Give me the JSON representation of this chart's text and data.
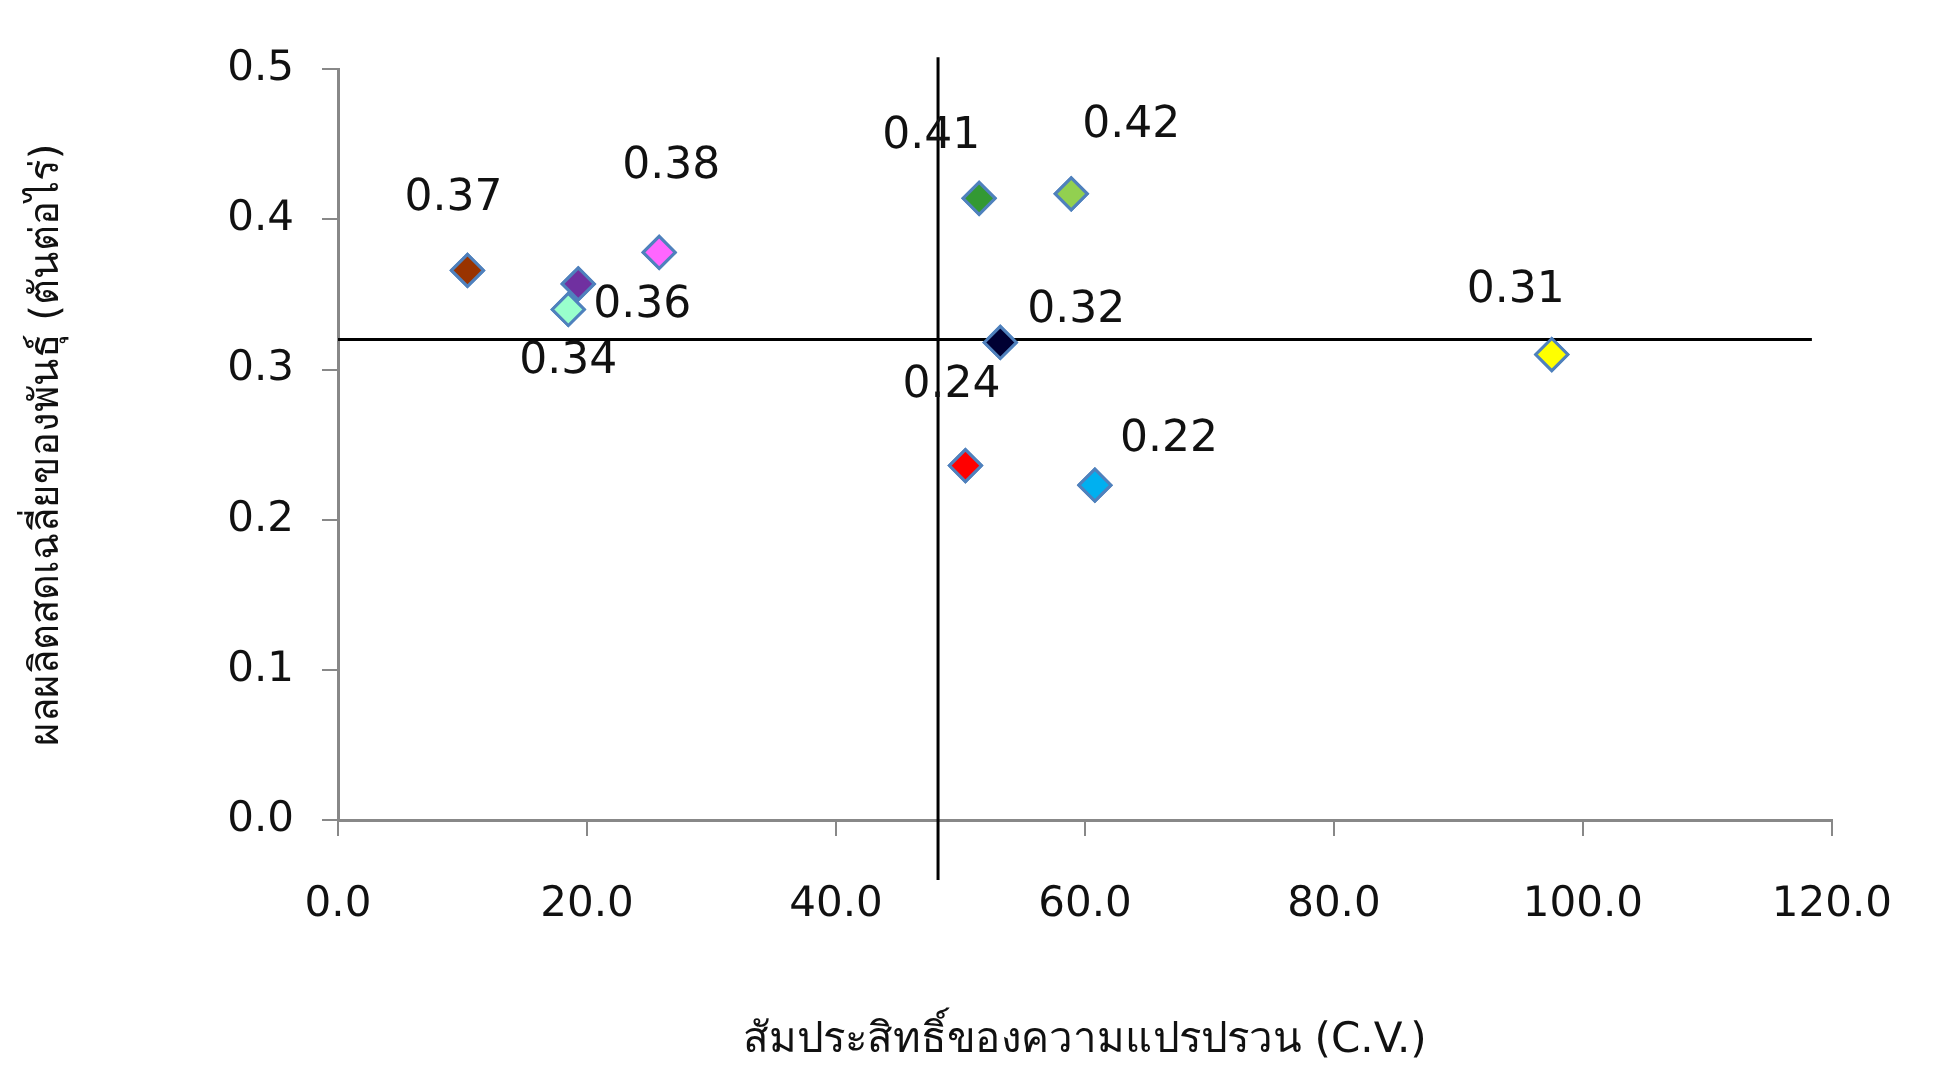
{
  "chart_data": {
    "type": "scatter",
    "xlabel": "สัมประสิทธิ์ของความแปรปรวน (C.V.)",
    "ylabel": "ผลผลิตสดเฉลี่ยของพันธุ์ (ตันต่อไร่)",
    "x": [
      10.4,
      18.5,
      19.3,
      25.8,
      50.4,
      51.5,
      53.2,
      58.9,
      60.8,
      97.5
    ],
    "values": [
      0.366,
      0.34,
      0.357,
      0.378,
      0.236,
      0.414,
      0.318,
      0.417,
      0.223,
      0.31
    ],
    "value_labels": [
      "0.37",
      "0.34",
      "0.36",
      "0.38",
      "0.24",
      "0.41",
      "0.32",
      "0.42",
      "0.22",
      "0.31"
    ],
    "colors": [
      "#993300",
      "#99ffcc",
      "#7030a0",
      "#ff66ff",
      "#ff0000",
      "#339933",
      "#000033",
      "#92d050",
      "#00b0f0",
      "#ffff00"
    ],
    "marker": "diamond",
    "xlim": [
      0,
      120
    ],
    "xticks": [
      {
        "value": 0,
        "label": "0.0"
      },
      {
        "value": 20,
        "label": "20.0"
      },
      {
        "value": 40,
        "label": "40.0"
      },
      {
        "value": 60,
        "label": "60.0"
      },
      {
        "value": 80,
        "label": "80.0"
      },
      {
        "value": 100,
        "label": "100.0"
      },
      {
        "value": 120,
        "label": "120.0"
      }
    ],
    "ylim": [
      0,
      0.5
    ],
    "yticks": [
      {
        "value": 0,
        "label": "0.0"
      },
      {
        "value": 0.1,
        "label": "0.1"
      },
      {
        "value": 0.2,
        "label": "0.2"
      },
      {
        "value": 0.3,
        "label": "0.3"
      },
      {
        "value": 0.4,
        "label": "0.4"
      },
      {
        "value": 0.5,
        "label": "0.5"
      }
    ],
    "ref_lines": [
      {
        "axis": "x",
        "value": 48.2,
        "color": "#000000"
      },
      {
        "axis": "y",
        "value": 0.32,
        "color": "#000000"
      }
    ],
    "grid": false,
    "legend": false
  }
}
